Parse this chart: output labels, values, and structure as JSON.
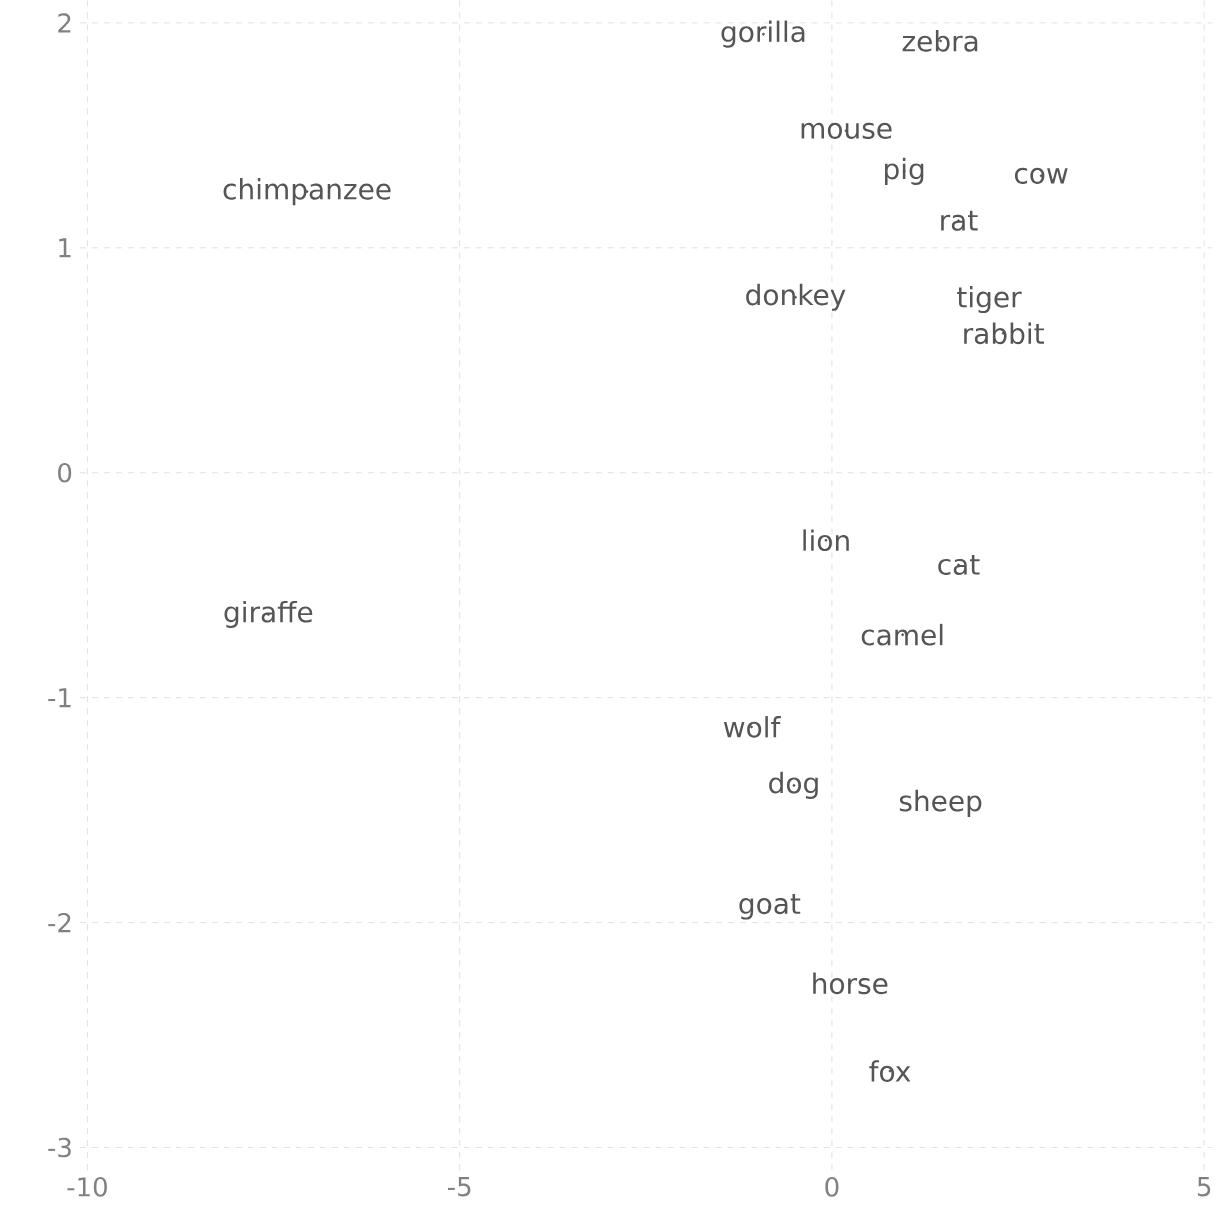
{
  "chart_data": {
    "type": "scatter",
    "marker": "none",
    "grid": true,
    "line_style": "dashed",
    "xlim": [
      -10.1,
      5.1
    ],
    "ylim": [
      -3.1,
      2.1
    ],
    "xticks": [
      -10,
      -5,
      0,
      5
    ],
    "yticks": [
      -3,
      -2,
      -1,
      0,
      1,
      2
    ],
    "series": [
      {
        "color": "#555555",
        "x": [
          -0.92,
          1.46,
          0.19,
          0.97,
          2.81,
          -7.05,
          1.7,
          -0.49,
          2.11,
          2.3,
          -0.08,
          1.7,
          -7.57,
          0.95,
          -1.08,
          -0.51,
          1.46,
          -0.84,
          0.24,
          0.78
        ],
        "values": [
          1.95,
          1.92,
          1.52,
          1.34,
          1.32,
          1.25,
          1.12,
          0.78,
          0.77,
          0.62,
          -0.3,
          -0.41,
          -0.63,
          -0.72,
          -1.13,
          -1.39,
          -1.47,
          -1.93,
          -2.27,
          -2.66
        ],
        "value_labels": [
          "gorilla",
          "zebra",
          "mouse",
          "pig",
          "cow",
          "chimpanzee",
          "rat",
          "donkey",
          "tiger",
          "rabbit",
          "lion",
          "cat",
          "giraffe",
          "camel",
          "wolf",
          "dog",
          "sheep",
          "goat",
          "horse",
          "fox"
        ]
      }
    ]
  }
}
